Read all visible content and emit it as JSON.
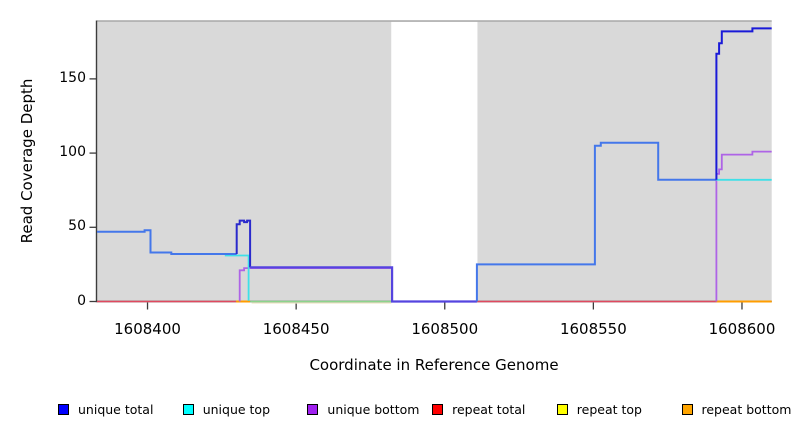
{
  "figure": {
    "kind": "read coverage depth plot",
    "background_color": "#ffffff",
    "plot_background_color": "#d9d9d9",
    "gap_band_color": "#ffffff",
    "top_border_color": "#a8a8a8",
    "axis_color": "#3c3c3c"
  },
  "chart_data": {
    "type": "line",
    "step": true,
    "title": "",
    "xlabel": "Coordinate in Reference Genome",
    "ylabel": "Read Coverage Depth",
    "xlim": [
      1608383,
      1608610
    ],
    "ylim": [
      0,
      189
    ],
    "x_ticks": [
      1608400,
      1608450,
      1608500,
      1608550,
      1608600
    ],
    "y_ticks": [
      0,
      50,
      100,
      150
    ],
    "grid": false,
    "legend_position": "bottom",
    "gap_region": {
      "x_start": 1608482,
      "x_end": 1608511,
      "note": "white band where coverage drops to 0"
    },
    "series": [
      {
        "name": "unique total",
        "color": "#0000ff",
        "points": [
          [
            1608383,
            47
          ],
          [
            1608399,
            48
          ],
          [
            1608401,
            33
          ],
          [
            1608408,
            32
          ],
          [
            1608430,
            52
          ],
          [
            1608431,
            54
          ],
          [
            1608433,
            53
          ],
          [
            1608434,
            54
          ],
          [
            1608435,
            23
          ],
          [
            1608482,
            0
          ],
          [
            1608511,
            25
          ],
          [
            1608550,
            105
          ],
          [
            1608553,
            107
          ],
          [
            1608572,
            82
          ],
          [
            1608591,
            167
          ],
          [
            1608592,
            174
          ],
          [
            1608593,
            182
          ],
          [
            1608604,
            184
          ],
          [
            1608610,
            184
          ]
        ]
      },
      {
        "name": "unique top",
        "color": "#00ffff",
        "points": [
          [
            1608383,
            47
          ],
          [
            1608399,
            48
          ],
          [
            1608401,
            33
          ],
          [
            1608408,
            32
          ],
          [
            1608425,
            31
          ],
          [
            1608434,
            0
          ],
          [
            1608511,
            25
          ],
          [
            1608550,
            105
          ],
          [
            1608553,
            107
          ],
          [
            1608572,
            82
          ],
          [
            1608610,
            82
          ]
        ]
      },
      {
        "name": "unique bottom",
        "color": "#a020f0",
        "points": [
          [
            1608383,
            0
          ],
          [
            1608431,
            21
          ],
          [
            1608433,
            23
          ],
          [
            1608482,
            0
          ],
          [
            1608591,
            86
          ],
          [
            1608592,
            89
          ],
          [
            1608593,
            99
          ],
          [
            1608604,
            101
          ],
          [
            1608610,
            101
          ]
        ]
      },
      {
        "name": "repeat total",
        "color": "#ff0000",
        "points": [
          [
            1608383,
            0
          ],
          [
            1608610,
            0
          ]
        ]
      },
      {
        "name": "repeat top",
        "color": "#ffff00",
        "points": [
          [
            1608383,
            0
          ],
          [
            1608610,
            0
          ]
        ]
      },
      {
        "name": "repeat bottom",
        "color": "#ffa500",
        "points": [
          [
            1608383,
            0
          ],
          [
            1608610,
            0
          ]
        ]
      }
    ],
    "render_polylines": [
      {
        "name": "repeat-top-under-trace",
        "color": "#efe8c8",
        "width": 1.2,
        "pts": [
          [
            1608435,
            -1
          ],
          [
            1608482,
            -1
          ]
        ]
      },
      {
        "name": "repeat-total-zero-left",
        "color": "#e0495f",
        "width": 1.6,
        "pts": [
          [
            1608383,
            0
          ],
          [
            1608430,
            0
          ]
        ]
      },
      {
        "name": "repeat-bottom-zero-mid",
        "color": "#ff9d00",
        "width": 2,
        "pts": [
          [
            1608429.8,
            0
          ],
          [
            1608434.5,
            0
          ]
        ]
      },
      {
        "name": "unique-top-zero-blend",
        "color": "#8cd48c",
        "width": 1.6,
        "pts": [
          [
            1608434.5,
            0
          ],
          [
            1608482.3,
            0
          ]
        ]
      },
      {
        "name": "repeat-total-zero-right",
        "color": "#e0495f",
        "width": 1.6,
        "pts": [
          [
            1608510.8,
            0
          ],
          [
            1608591.4,
            0
          ]
        ]
      },
      {
        "name": "repeat-bottom-zero-end",
        "color": "#ff9d00",
        "width": 2,
        "pts": [
          [
            1608591.4,
            0
          ],
          [
            1608610,
            0
          ]
        ]
      },
      {
        "name": "unique-bottom-rise-left",
        "color": "#ae64e6",
        "width": 1.8,
        "pts": [
          [
            1608431,
            0
          ],
          [
            1608431,
            21
          ],
          [
            1608432.5,
            21
          ],
          [
            1608432.5,
            22.5
          ],
          [
            1608482,
            22.5
          ]
        ]
      },
      {
        "name": "unique-bottom-right",
        "color": "#ae64e6",
        "width": 1.8,
        "pts": [
          [
            1608591.4,
            0
          ],
          [
            1608591.4,
            86
          ],
          [
            1608592.3,
            86
          ],
          [
            1608592.3,
            89
          ],
          [
            1608593.2,
            89
          ],
          [
            1608593.2,
            99
          ],
          [
            1608603.5,
            99
          ],
          [
            1608603.5,
            101
          ],
          [
            1608610,
            101
          ]
        ]
      },
      {
        "name": "unique-top-left-visible",
        "color": "#3fe0e8",
        "width": 1.8,
        "pts": [
          [
            1608426,
            31
          ],
          [
            1608434,
            31
          ],
          [
            1608434,
            0.5
          ]
        ]
      },
      {
        "name": "unique-top-right",
        "color": "#3fe0e8",
        "width": 1.8,
        "pts": [
          [
            1608591.4,
            82
          ],
          [
            1608610,
            82
          ]
        ]
      },
      {
        "name": "unique-total-left",
        "color": "#4477ea",
        "width": 2,
        "pts": [
          [
            1608383,
            47
          ],
          [
            1608399,
            47
          ],
          [
            1608399,
            48
          ],
          [
            1608401,
            48
          ],
          [
            1608401,
            33
          ],
          [
            1608408,
            33
          ],
          [
            1608408,
            32
          ],
          [
            1608430,
            32
          ]
        ]
      },
      {
        "name": "unique-total-spike",
        "color": "#2a2acc",
        "width": 2,
        "pts": [
          [
            1608430,
            32
          ],
          [
            1608430,
            52
          ],
          [
            1608431,
            52
          ],
          [
            1608431,
            54.5
          ],
          [
            1608432.5,
            54.5
          ],
          [
            1608432.5,
            53.5
          ],
          [
            1608433.5,
            53.5
          ],
          [
            1608433.5,
            54.5
          ],
          [
            1608434.5,
            54.5
          ],
          [
            1608434.5,
            23
          ]
        ]
      },
      {
        "name": "unique-total-mid",
        "color": "#5544df",
        "width": 2.2,
        "pts": [
          [
            1608434.5,
            23
          ],
          [
            1608482.3,
            23
          ],
          [
            1608482.3,
            0
          ],
          [
            1608510.8,
            0
          ]
        ]
      },
      {
        "name": "unique-total-mid-right",
        "color": "#4477ea",
        "width": 2,
        "pts": [
          [
            1608510.8,
            0
          ],
          [
            1608510.8,
            25
          ],
          [
            1608550.5,
            25
          ],
          [
            1608550.5,
            105
          ],
          [
            1608552.5,
            105
          ],
          [
            1608552.5,
            107
          ],
          [
            1608571.8,
            107
          ],
          [
            1608571.8,
            82
          ],
          [
            1608591.4,
            82
          ]
        ]
      },
      {
        "name": "unique-total-right",
        "color": "#1a1ad8",
        "width": 2,
        "pts": [
          [
            1608591.4,
            82
          ],
          [
            1608591.4,
            167
          ],
          [
            1608592.3,
            167
          ],
          [
            1608592.3,
            174
          ],
          [
            1608593.2,
            174
          ],
          [
            1608593.2,
            182
          ],
          [
            1608603.5,
            182
          ],
          [
            1608603.5,
            184
          ],
          [
            1608610,
            184
          ]
        ]
      }
    ]
  },
  "legend": {
    "items": [
      {
        "label": "unique total",
        "color": "#0000ff"
      },
      {
        "label": "unique top",
        "color": "#00ffff"
      },
      {
        "label": "unique bottom",
        "color": "#a020f0"
      },
      {
        "label": "repeat total",
        "color": "#ff0000"
      },
      {
        "label": "repeat top",
        "color": "#ffff00"
      },
      {
        "label": "repeat bottom",
        "color": "#ffa500"
      }
    ]
  }
}
